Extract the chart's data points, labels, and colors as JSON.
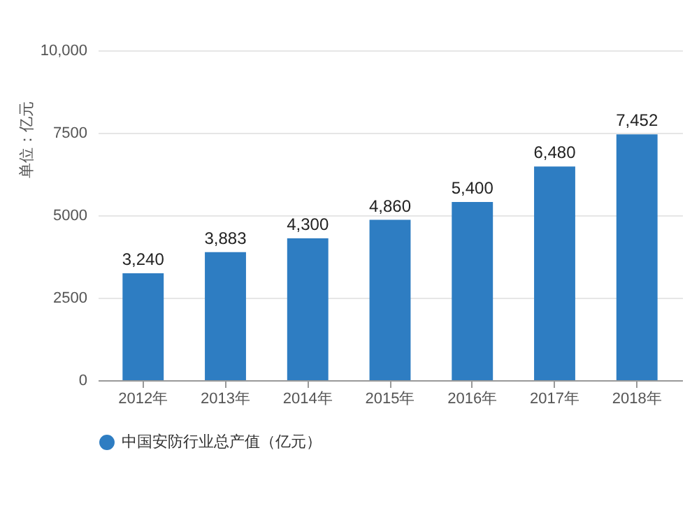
{
  "chart_data": {
    "type": "bar",
    "ylabel": "单位：亿元",
    "categories": [
      "2012年",
      "2013年",
      "2014年",
      "2015年",
      "2016年",
      "2017年",
      "2018年"
    ],
    "series": [
      {
        "name": "中国安防行业总产值（亿元）",
        "color": "#2e7dc2",
        "values": [
          3240,
          3883,
          4300,
          4860,
          5400,
          6480,
          7452
        ],
        "value_labels": [
          "3,240",
          "3,883",
          "4,300",
          "4,860",
          "5,400",
          "6,480",
          "7,452"
        ]
      }
    ],
    "ylim": [
      0,
      10000
    ],
    "yticks": [
      0,
      2500,
      5000,
      7500,
      {
        "value": 10000,
        "label": "10,000"
      }
    ],
    "grid": "y",
    "legend": "bottom"
  }
}
